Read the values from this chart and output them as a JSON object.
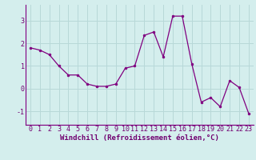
{
  "x": [
    0,
    1,
    2,
    3,
    4,
    5,
    6,
    7,
    8,
    9,
    10,
    11,
    12,
    13,
    14,
    15,
    16,
    17,
    18,
    19,
    20,
    21,
    22,
    23
  ],
  "y": [
    1.8,
    1.7,
    1.5,
    1.0,
    0.6,
    0.6,
    0.2,
    0.1,
    0.1,
    0.2,
    0.9,
    1.0,
    2.35,
    2.5,
    1.4,
    3.2,
    3.2,
    1.1,
    -0.6,
    -0.4,
    -0.8,
    0.35,
    0.05,
    -1.1
  ],
  "line_color": "#800080",
  "marker": "o",
  "markersize": 2.0,
  "linewidth": 0.9,
  "xlabel": "Windchill (Refroidissement éolien,°C)",
  "xlabel_fontsize": 6.5,
  "ytick_labels": [
    "-1",
    "0",
    "1",
    "2",
    "3"
  ],
  "ytick_values": [
    -1,
    0,
    1,
    2,
    3
  ],
  "xlim": [
    -0.5,
    23.5
  ],
  "ylim": [
    -1.6,
    3.7
  ],
  "bg_color": "#d4eeed",
  "grid_color": "#b8d8d8",
  "tick_fontsize": 6.0,
  "tick_color": "#700070",
  "label_color": "#700070"
}
